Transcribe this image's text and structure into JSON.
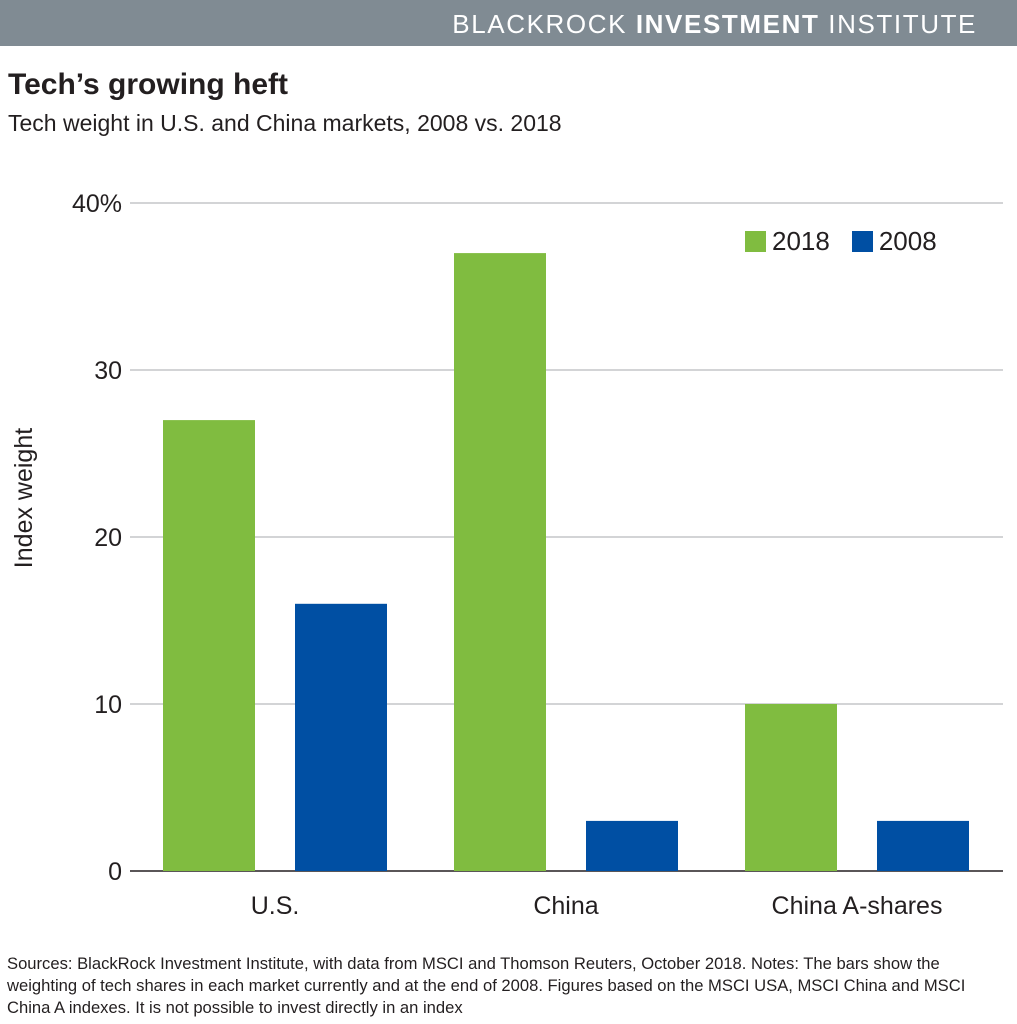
{
  "header": {
    "brand_part1": "BLACKROCK ",
    "brand_part2": "INVESTMENT",
    "brand_part3": " INSTITUTE"
  },
  "title": "Tech’s growing heft",
  "subtitle": "Tech weight in U.S. and China markets, 2008 vs. 2018",
  "colors": {
    "banner": "#808b93",
    "series_2018": "#80bc40",
    "series_2008": "#004fa3",
    "gridline": "#a7a9ac"
  },
  "chart_data": {
    "type": "bar",
    "title": "Tech’s growing heft",
    "xlabel": "",
    "ylabel": "Index weight",
    "ylim": [
      0,
      40
    ],
    "yticks": [
      0,
      10,
      20,
      30,
      40
    ],
    "ytick_labels": [
      "0",
      "10",
      "20",
      "30",
      "40%"
    ],
    "grid": true,
    "legend_position": "top-right",
    "categories": [
      "U.S.",
      "China",
      "China A-shares"
    ],
    "series": [
      {
        "name": "2018",
        "color": "#80bc40",
        "values": [
          27,
          37,
          10
        ]
      },
      {
        "name": "2008",
        "color": "#004fa3",
        "values": [
          16,
          3,
          3
        ]
      }
    ]
  },
  "footer": {
    "sources": "Sources: BlackRock Investment Institute, with data from MSCI and Thomson Reuters, October 2018. Notes: The bars show the weighting of tech shares in each market currently and at the end of 2008. Figures based on the MSCI USA, MSCI China and MSCI China A indexes. It is not possible to invest directly in an index"
  }
}
